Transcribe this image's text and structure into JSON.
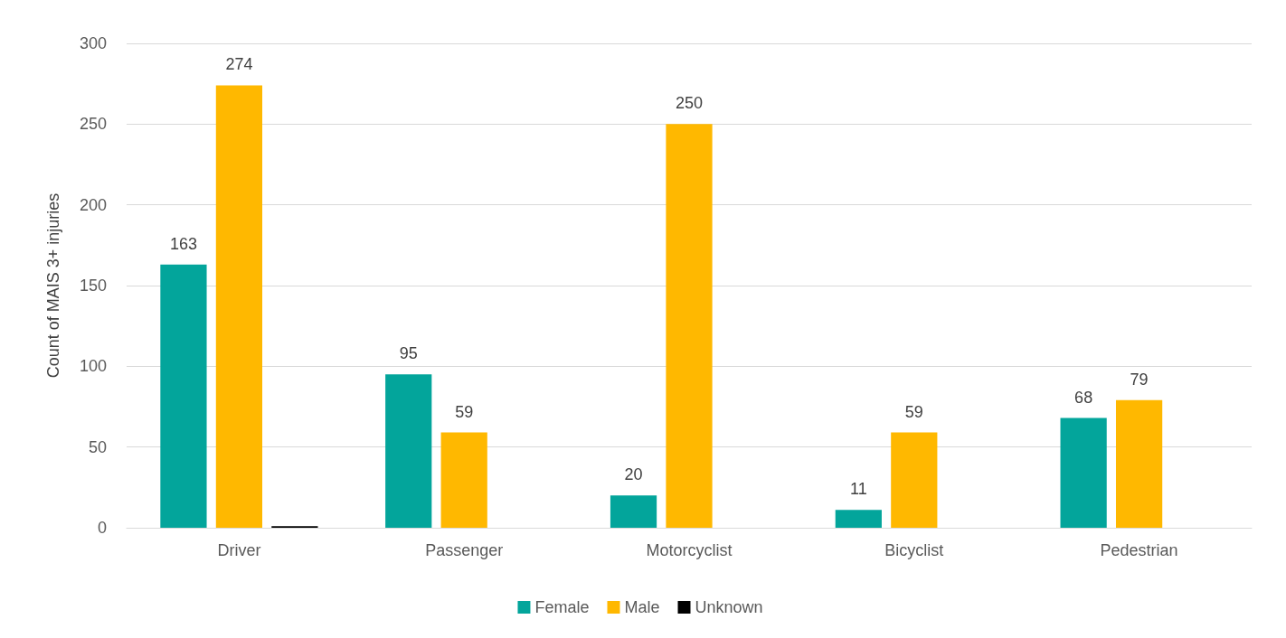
{
  "chart_data": {
    "type": "bar",
    "ylabel": "Count of MAIS 3+ injuries",
    "categories": [
      "Driver",
      "Passenger",
      "Motorcyclist",
      "Bicyclist",
      "Pedestrian"
    ],
    "series": [
      {
        "name": "Female",
        "color": "#03a59b",
        "values": [
          163,
          95,
          20,
          11,
          68
        ],
        "value_labels": [
          "163",
          "95",
          "20",
          "11",
          "68"
        ]
      },
      {
        "name": "Male",
        "color": "#ffb800",
        "values": [
          274,
          59,
          250,
          59,
          79
        ],
        "value_labels": [
          "274",
          "59",
          "250",
          "59",
          "79"
        ]
      },
      {
        "name": "Unknown",
        "color": "#000000",
        "values": [
          1,
          0,
          0,
          0,
          0
        ],
        "value_labels": [
          null,
          null,
          null,
          null,
          null
        ]
      }
    ],
    "ylim": [
      0,
      300
    ],
    "yticks": [
      0,
      50,
      100,
      150,
      200,
      250,
      300
    ],
    "grid": "y",
    "legend": "bottom"
  }
}
